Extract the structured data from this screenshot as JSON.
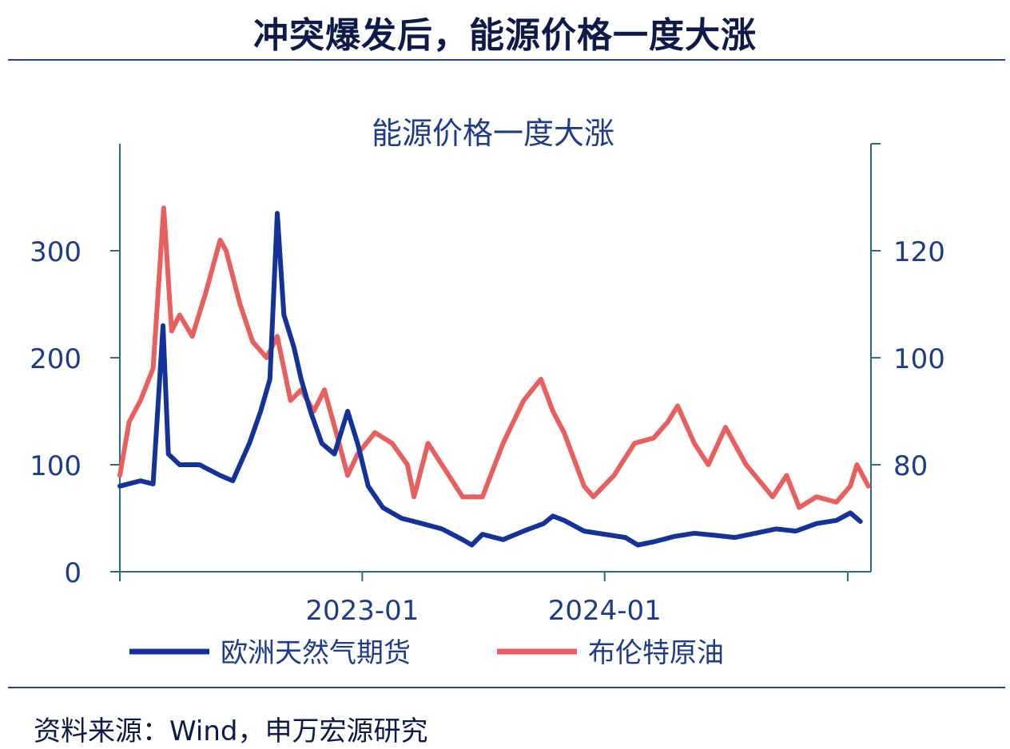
{
  "page_title": "冲突爆发后，能源价格一度大涨",
  "source": "资料来源：Wind，申万宏源研究",
  "colors": {
    "gas": "#13339a",
    "brent": "#e8605e",
    "axis": "#2a6a8a",
    "text": "#1f3b8c"
  },
  "chart_data": {
    "type": "line",
    "title": "能源价格一度大涨",
    "x_ticks": [
      "2023-01",
      "2024-01"
    ],
    "y_left": {
      "lim": [
        0,
        400
      ],
      "ticks": [
        0,
        100,
        200,
        300
      ]
    },
    "y_right": {
      "lim": [
        60,
        140
      ],
      "ticks": [
        80,
        100,
        120
      ]
    },
    "legend_position": "bottom",
    "series": [
      {
        "name": "欧洲天然气期货",
        "axis": "left",
        "color": "#13339a",
        "x": [
          "2022-01-01",
          "2022-02-01",
          "2022-02-20",
          "2022-03-07",
          "2022-03-15",
          "2022-04-01",
          "2022-05-01",
          "2022-06-01",
          "2022-06-20",
          "2022-07-15",
          "2022-08-01",
          "2022-08-15",
          "2022-08-26",
          "2022-09-05",
          "2022-09-20",
          "2022-10-01",
          "2022-10-15",
          "2022-11-01",
          "2022-11-20",
          "2022-12-10",
          "2022-12-25",
          "2023-01-10",
          "2023-02-01",
          "2023-03-01",
          "2023-04-01",
          "2023-05-01",
          "2023-06-01",
          "2023-06-15",
          "2023-07-01",
          "2023-08-01",
          "2023-09-01",
          "2023-10-01",
          "2023-10-15",
          "2023-11-01",
          "2023-12-01",
          "2024-01-01",
          "2024-02-01",
          "2024-02-20",
          "2024-03-15",
          "2024-04-15",
          "2024-05-15",
          "2024-06-15",
          "2024-07-15",
          "2024-08-15",
          "2024-09-15",
          "2024-10-15",
          "2024-11-15",
          "2024-12-15",
          "2025-01-05",
          "2025-01-20"
        ],
        "values": [
          80,
          85,
          82,
          230,
          110,
          100,
          100,
          90,
          85,
          120,
          150,
          180,
          335,
          240,
          210,
          180,
          150,
          120,
          110,
          150,
          120,
          80,
          60,
          50,
          45,
          40,
          30,
          25,
          35,
          30,
          38,
          45,
          52,
          48,
          38,
          35,
          32,
          25,
          28,
          33,
          36,
          34,
          32,
          36,
          40,
          38,
          45,
          48,
          55,
          47
        ]
      },
      {
        "name": "布伦特原油",
        "axis": "right",
        "color": "#e8605e",
        "x": [
          "2022-01-01",
          "2022-01-15",
          "2022-02-01",
          "2022-02-20",
          "2022-03-08",
          "2022-03-20",
          "2022-04-01",
          "2022-04-20",
          "2022-05-10",
          "2022-06-01",
          "2022-06-10",
          "2022-07-01",
          "2022-07-20",
          "2022-08-10",
          "2022-08-26",
          "2022-09-15",
          "2022-10-01",
          "2022-10-20",
          "2022-11-05",
          "2022-11-25",
          "2022-12-10",
          "2022-12-25",
          "2023-01-20",
          "2023-02-15",
          "2023-03-10",
          "2023-03-20",
          "2023-04-10",
          "2023-05-01",
          "2023-06-01",
          "2023-07-01",
          "2023-08-01",
          "2023-09-01",
          "2023-09-27",
          "2023-10-15",
          "2023-11-01",
          "2023-12-01",
          "2023-12-15",
          "2024-01-15",
          "2024-02-15",
          "2024-03-15",
          "2024-04-05",
          "2024-04-20",
          "2024-05-15",
          "2024-06-05",
          "2024-07-01",
          "2024-08-01",
          "2024-09-10",
          "2024-10-01",
          "2024-10-20",
          "2024-11-15",
          "2024-12-15",
          "2025-01-05",
          "2025-01-15",
          "2025-02-01"
        ],
        "values": [
          78,
          88,
          92,
          98,
          128,
          105,
          108,
          104,
          112,
          122,
          120,
          110,
          103,
          100,
          104,
          92,
          94,
          90,
          94,
          85,
          78,
          82,
          86,
          84,
          80,
          74,
          84,
          80,
          74,
          74,
          84,
          92,
          96,
          90,
          86,
          76,
          74,
          78,
          84,
          85,
          88,
          91,
          84,
          80,
          87,
          80,
          74,
          78,
          72,
          74,
          73,
          76,
          80,
          76
        ]
      }
    ]
  }
}
